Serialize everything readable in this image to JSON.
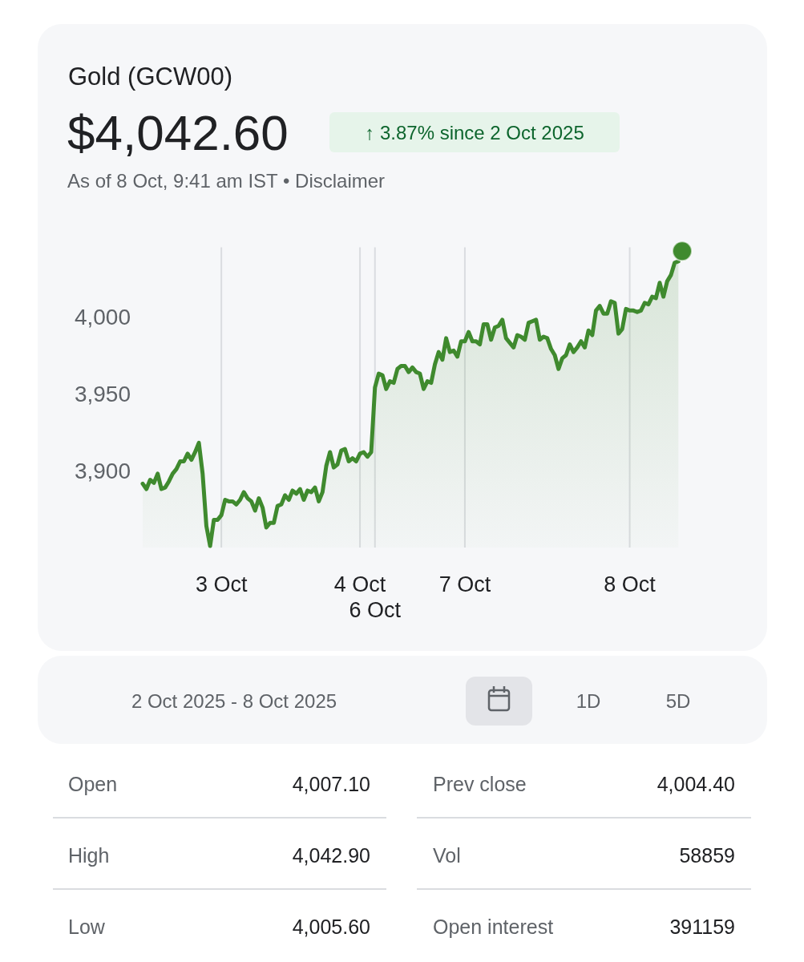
{
  "chart_data": {
    "type": "area",
    "title": "Gold (GCW00)",
    "subtitle": "$4,042.60",
    "annotations": [
      "↑ 3.87% since 2 Oct 2025",
      "As of 8 Oct, 9:41 am IST • Disclaimer",
      "2 Oct 2025 - 8 Oct 2025",
      "1D",
      "5D",
      "Open",
      "4,007.10",
      "Prev close",
      "4,004.40",
      "High",
      "4,042.90",
      "Vol",
      "58859",
      "Low",
      "4,005.60",
      "Open interest",
      "391159"
    ],
    "categories": [
      null,
      null,
      null,
      null,
      null,
      null,
      null,
      null,
      null,
      null,
      null,
      null,
      null,
      null,
      null,
      null,
      null,
      null,
      null,
      null,
      null,
      "3 Oct",
      null,
      null,
      null,
      null,
      null,
      null,
      null,
      null,
      null,
      null,
      null,
      null,
      null,
      null,
      null,
      null,
      null,
      null,
      null,
      null,
      null,
      null,
      null,
      null,
      null,
      null,
      null,
      null,
      null,
      null,
      null,
      null,
      null,
      null,
      null,
      null,
      "4 Oct",
      null,
      null,
      null,
      "6 Oct",
      null,
      null,
      null,
      null,
      null,
      null,
      null,
      null,
      null,
      null,
      null,
      null,
      null,
      null,
      null,
      null,
      null,
      null,
      null,
      null,
      null,
      null,
      null,
      "7 Oct",
      null,
      null,
      null,
      null,
      null,
      null,
      null,
      null,
      null,
      null,
      null,
      null,
      null,
      null,
      null,
      null,
      null,
      null,
      null,
      null,
      null,
      null,
      null,
      null,
      null,
      null,
      null,
      null,
      null,
      null,
      null,
      null,
      null,
      null,
      null,
      null,
      null,
      null,
      null,
      null,
      null,
      null,
      null,
      "8 Oct",
      null,
      null,
      null,
      null,
      null,
      null,
      null,
      null,
      null,
      null,
      null,
      null,
      null,
      null
    ],
    "ylim": [
      3850,
      4045
    ],
    "yticks": [
      {
        "value": 3900,
        "label": "3,900"
      },
      {
        "value": 3950,
        "label": "3,950"
      },
      {
        "value": 4000,
        "label": "4,000"
      }
    ],
    "grid": "x",
    "series": [
      {
        "color": "#3f8a2e",
        "values": [
          3891.5,
          3888,
          3894,
          3892,
          3898,
          3888,
          3889,
          3893,
          3898,
          3901,
          3906,
          3906,
          3911,
          3907,
          3912,
          3918,
          3898,
          3864,
          3851,
          3868,
          3868,
          3871,
          3881,
          3880,
          3880,
          3878,
          3881,
          3886,
          3882,
          3880,
          3874,
          3882,
          3876,
          3863,
          3866,
          3866,
          3877,
          3878,
          3884,
          3881,
          3887,
          3885,
          3888,
          3881,
          3887,
          3886,
          3889,
          3880,
          3886,
          3903,
          3912,
          3902,
          3904,
          3913,
          3914,
          3906,
          3908,
          3906,
          3911,
          3912,
          3909,
          3912,
          3954,
          3963,
          3962,
          3953,
          3958,
          3957,
          3966,
          3968,
          3968,
          3964,
          3967,
          3964,
          3963,
          3953,
          3958,
          3957,
          3969,
          3977,
          3972,
          3986,
          3977,
          3978,
          3974,
          3984,
          3984,
          3990,
          3984,
          3984,
          3982,
          3995,
          3995,
          3985,
          3993,
          3994,
          3998,
          3986,
          3983,
          3980,
          3988,
          3987,
          3985,
          3996,
          3997,
          3998,
          3985,
          3987,
          3986,
          3979,
          3975,
          3966,
          3973,
          3975,
          3982,
          3977,
          3980,
          3984,
          3980,
          3991,
          3988,
          4004,
          4007,
          4002,
          4002,
          4010,
          4009,
          3989,
          3992,
          4005,
          4004,
          4004,
          4003,
          4004,
          4009,
          4008,
          4013,
          4012,
          4022,
          4013,
          4023,
          4027,
          4035,
          4036,
          null
        ]
      },
      {
        "type": "scatter",
        "color": "#3f8a2e",
        "values": [
          null,
          null,
          null,
          null,
          null,
          null,
          null,
          null,
          null,
          null,
          null,
          null,
          null,
          null,
          null,
          null,
          null,
          null,
          null,
          null,
          null,
          null,
          null,
          null,
          null,
          null,
          null,
          null,
          null,
          null,
          null,
          null,
          null,
          null,
          null,
          null,
          null,
          null,
          null,
          null,
          null,
          null,
          null,
          null,
          null,
          null,
          null,
          null,
          null,
          null,
          null,
          null,
          null,
          null,
          null,
          null,
          null,
          null,
          null,
          null,
          null,
          null,
          null,
          null,
          null,
          null,
          null,
          null,
          null,
          null,
          null,
          null,
          null,
          null,
          null,
          null,
          null,
          null,
          null,
          null,
          null,
          null,
          null,
          null,
          null,
          null,
          null,
          null,
          null,
          null,
          null,
          null,
          null,
          null,
          null,
          null,
          null,
          null,
          null,
          null,
          null,
          null,
          null,
          null,
          null,
          null,
          null,
          null,
          null,
          null,
          null,
          null,
          null,
          null,
          null,
          null,
          null,
          null,
          null,
          null,
          null,
          null,
          null,
          null,
          null,
          null,
          null,
          null,
          null,
          null,
          null,
          null,
          null,
          null,
          null,
          null,
          null,
          null,
          null,
          null,
          null,
          null,
          null,
          null,
          4042.6
        ]
      }
    ]
  }
}
